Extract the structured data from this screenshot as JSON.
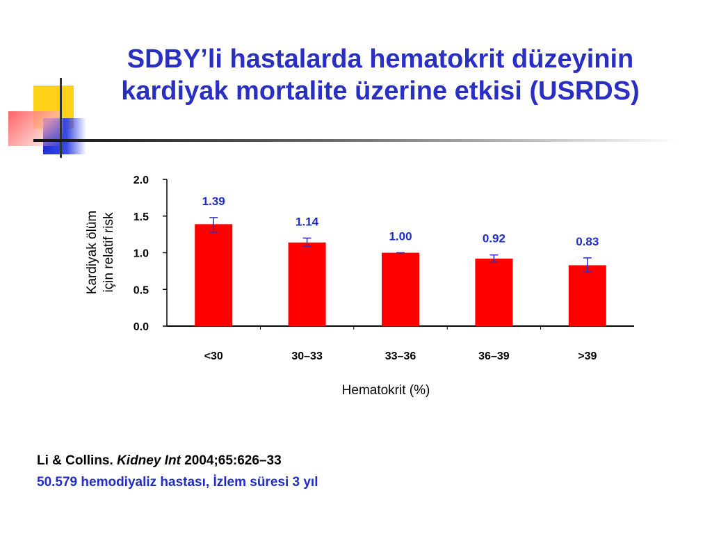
{
  "slide": {
    "title_line1": "SDBY’li hastalarda hematokrit düzeyinin",
    "title_line2": "kardiyak mortalite üzerine etkisi (USRDS)"
  },
  "chart_data": {
    "type": "bar",
    "categories": [
      "<30",
      "30–33",
      "33–36",
      "36–39",
      ">39"
    ],
    "values": [
      1.39,
      1.14,
      1.0,
      0.92,
      0.83
    ],
    "value_labels": [
      "1.39",
      "1.14",
      "1.00",
      "0.92",
      "0.83"
    ],
    "error_low": [
      1.28,
      1.09,
      1.0,
      0.87,
      0.74
    ],
    "error_high": [
      1.48,
      1.2,
      1.0,
      0.97,
      0.93
    ],
    "title": "",
    "xlabel": "Hematokrit (%)",
    "ylabel_lines": [
      "Kardiyak ölüm",
      "için relatif risk"
    ],
    "ylim": [
      0,
      2.0
    ],
    "yticks": [
      "0.0",
      "0.5",
      "1.0",
      "1.5",
      "2.0"
    ],
    "grid": false,
    "bar_color": "#ff0000",
    "error_bar_color": "#2a2fc4",
    "label_color": "#1f2cc8"
  },
  "citation": {
    "authors": "Li & Collins.",
    "journal": "Kidney Int",
    "details": "2004;65:626–33"
  },
  "note": "50.579 hemodiyaliz hastası, İzlem süresi 3 yıl"
}
